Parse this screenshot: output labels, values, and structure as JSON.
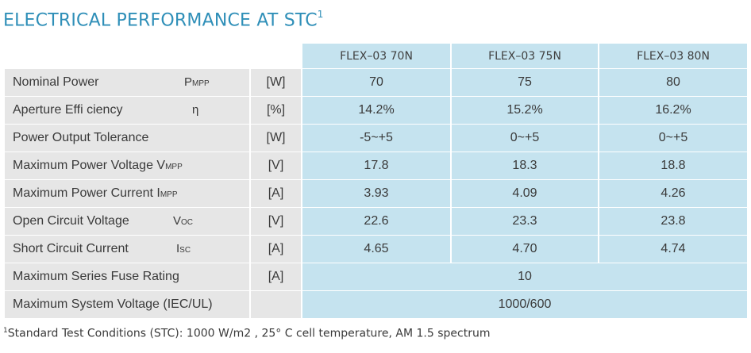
{
  "title": {
    "text": "ELECTRICAL PERFORMANCE AT STC",
    "sup": "1"
  },
  "columns": [
    "FLEX–03 70N",
    "FLEX–03 75N",
    "FLEX–03 80N"
  ],
  "rows": [
    {
      "label": "Nominal Power",
      "symbol": "P",
      "symbol_sub": "MPP",
      "unit": "[W]",
      "values": [
        "70",
        "75",
        "80"
      ]
    },
    {
      "label": "Aperture Effi ciency",
      "symbol": "η",
      "symbol_sub": "",
      "unit": "[%]",
      "values": [
        "14.2%",
        "15.2%",
        "16.2%"
      ]
    },
    {
      "label": "Power Output Tolerance",
      "symbol": "",
      "symbol_sub": "",
      "unit": "[W]",
      "values": [
        "-5~+5",
        "0~+5",
        "0~+5"
      ]
    },
    {
      "label": "Maximum Power Voltage V",
      "symbol": "",
      "symbol_sub": "MPP",
      "unit": "[V]",
      "values": [
        "17.8",
        "18.3",
        "18.8"
      ]
    },
    {
      "label": "Maximum Power Current I",
      "symbol": "",
      "symbol_sub": "MPP",
      "unit": "[A]",
      "values": [
        "3.93",
        "4.09",
        "4.26"
      ]
    },
    {
      "label": "Open Circuit Voltage",
      "symbol": "V",
      "symbol_sub": "OC",
      "unit": "[V]",
      "values": [
        "22.6",
        "23.3",
        "23.8"
      ]
    },
    {
      "label": "Short Circuit Current",
      "symbol": "I",
      "symbol_sub": "SC",
      "unit": "[A]",
      "values": [
        "4.65",
        "4.70",
        "4.74"
      ]
    },
    {
      "label": "Maximum Series Fuse Rating",
      "symbol": "",
      "symbol_sub": "",
      "unit": "[A]",
      "merged_value": "10"
    },
    {
      "label": "Maximum System Voltage (IEC/UL)",
      "symbol": "",
      "symbol_sub": "",
      "unit": "",
      "merged_value": "1000/600"
    }
  ],
  "footnote": {
    "sup": "1",
    "text": "Standard Test Conditions (STC): 1000 W/m2 , 25°  C cell temperature, AM 1.5 spectrum"
  }
}
